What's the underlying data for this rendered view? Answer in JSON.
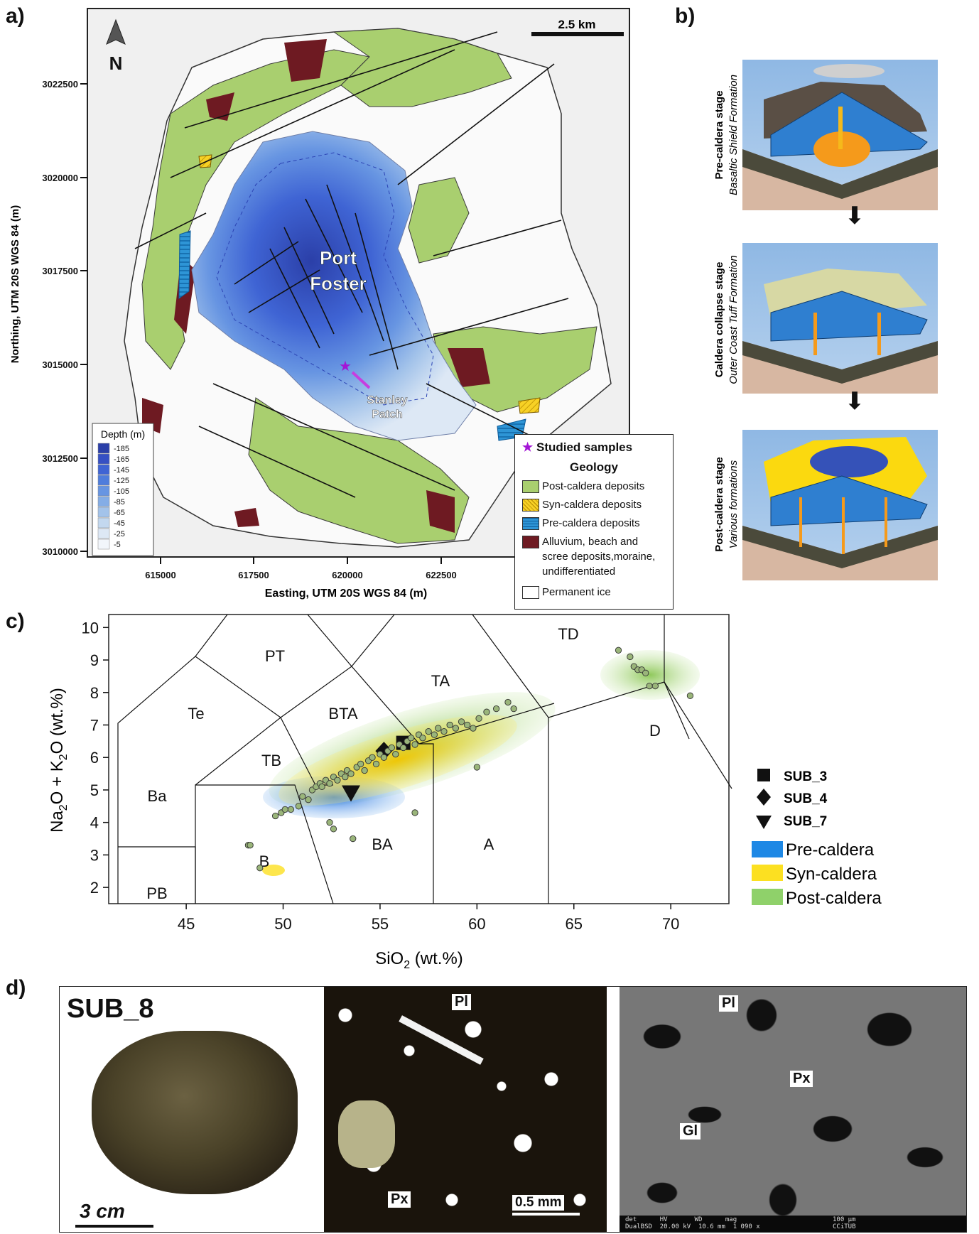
{
  "panel_a": {
    "letter": "a)",
    "north": "N",
    "scale": "2.5 km",
    "lake_title_1": "Port",
    "lake_title_2": "Foster",
    "site_1": "Stanley",
    "site_2": "Patch",
    "y_ticks": [
      "3022500",
      "3020000",
      "3017500",
      "3015000",
      "3012500",
      "3010000"
    ],
    "x_ticks": [
      "615000",
      "617500",
      "620000",
      "622500"
    ],
    "y_title": "Northing, UTM 20S WGS 84 (m)",
    "x_title": "Easting, UTM 20S WGS 84 (m)",
    "depth_legend": {
      "title": "Depth (m)",
      "levels": [
        "-185",
        "-165",
        "-145",
        "-125",
        "-105",
        "-85",
        "-65",
        "-45",
        "-25",
        "-5"
      ],
      "colors": [
        "#2b3fa8",
        "#3650c4",
        "#3f64d4",
        "#4f7ddc",
        "#6795e2",
        "#84ade6",
        "#a3c3ea",
        "#c3d8ef",
        "#dde8f5",
        "#f2f6fb"
      ]
    },
    "geology_legend": {
      "samples": "Studied samples",
      "title": "Geology",
      "items": [
        {
          "label": "Post-caldera deposits",
          "color": "#a9cf6f"
        },
        {
          "label": "Syn-caldera deposits",
          "color": "#f7d125"
        },
        {
          "label": "Pre-caldera deposits",
          "color": "#2e95d6"
        },
        {
          "label": "Alluvium, beach and",
          "color": "#6e1a22"
        },
        {
          "label": "Permanent ice",
          "color": "#ffffff"
        }
      ],
      "alluvium_extra_1": "scree deposits,moraine,",
      "alluvium_extra_2": "undifferentiated"
    }
  },
  "panel_b": {
    "letter": "b)",
    "stages": [
      {
        "stage": "Pre-caldera stage",
        "formation": "Basaltic Shield Formation"
      },
      {
        "stage": "Caldera collapse stage",
        "formation": "Outer Coast Tuff Formation"
      },
      {
        "stage": "Post-caldera stage",
        "formation": "Various formations"
      }
    ]
  },
  "panel_c": {
    "letter": "c)",
    "fields": [
      "TD",
      "PT",
      "TA",
      "Te",
      "BTA",
      "D",
      "TB",
      "Ba",
      "BA",
      "A",
      "B",
      "PB"
    ],
    "legend_samples": [
      "SUB_3",
      "SUB_4",
      "SUB_7"
    ],
    "legend_groups": [
      {
        "label": "Pre-caldera",
        "color": "#1e88e5"
      },
      {
        "label": "Syn-caldera",
        "color": "#fce021"
      },
      {
        "label": "Post-caldera",
        "color": "#8fd16a"
      }
    ]
  },
  "chart_data": {
    "type": "scatter",
    "title": "",
    "xlabel": "SiO2  (wt.%)",
    "ylabel": "Na2O + K2O  (wt.%)",
    "xlim": [
      41,
      73
    ],
    "ylim": [
      1.5,
      10.4
    ],
    "xticks": [
      45,
      50,
      55,
      60,
      65,
      70
    ],
    "yticks": [
      2,
      3,
      4,
      5,
      6,
      7,
      8,
      9,
      10
    ],
    "series": [
      {
        "name": "SUB_3",
        "marker": "square",
        "x": [
          56.2
        ],
        "y": [
          6.45
        ]
      },
      {
        "name": "SUB_4",
        "marker": "diamond",
        "x": [
          55.2
        ],
        "y": [
          6.2
        ]
      },
      {
        "name": "SUB_7",
        "marker": "triangle-down",
        "x": [
          53.5
        ],
        "y": [
          4.9
        ]
      },
      {
        "x": [
          48.2,
          48.8,
          49.6,
          49.9,
          50.1,
          50.4,
          50.8,
          51.0,
          51.3,
          51.5,
          51.7,
          51.9,
          52.0,
          52.2,
          52.4,
          52.6,
          52.8,
          53.0,
          53.2,
          53.3,
          53.5,
          53.8,
          54.0,
          54.2,
          54.4,
          54.6,
          54.8,
          55.0,
          55.2,
          55.4,
          55.6,
          55.8,
          56.0,
          56.2,
          56.4,
          56.6,
          56.8,
          57.0,
          57.2,
          57.5,
          57.8,
          58.0,
          58.3,
          58.6,
          58.9,
          59.2,
          59.5,
          59.8,
          60.1,
          60.5,
          61.0,
          61.6,
          61.9,
          52.4,
          52.6,
          53.6,
          56.8,
          48.3,
          67.3,
          67.9,
          68.1,
          68.3,
          68.5,
          68.7,
          68.9,
          69.2,
          71.0,
          60.0
        ],
        "y": [
          3.3,
          2.6,
          4.2,
          4.3,
          4.4,
          4.4,
          4.5,
          4.8,
          4.7,
          5.0,
          5.1,
          5.2,
          5.1,
          5.3,
          5.2,
          5.4,
          5.3,
          5.5,
          5.4,
          5.6,
          5.5,
          5.7,
          5.8,
          5.6,
          5.9,
          6.0,
          5.8,
          6.1,
          6.0,
          6.2,
          6.3,
          6.1,
          6.4,
          6.3,
          6.5,
          6.6,
          6.4,
          6.7,
          6.6,
          6.8,
          6.7,
          6.9,
          6.8,
          7.0,
          6.9,
          7.1,
          7.0,
          6.9,
          7.2,
          7.4,
          7.5,
          7.7,
          7.5,
          4.0,
          3.8,
          3.5,
          4.3,
          3.3,
          9.3,
          9.1,
          8.8,
          8.7,
          8.7,
          8.6,
          8.2,
          8.2,
          7.9,
          5.7
        ]
      }
    ]
  },
  "panel_d": {
    "letter": "d)",
    "sample": "SUB_8",
    "scale_rock": "3 cm",
    "scale_thin": "0.5 mm",
    "labels_thin": [
      "Pl",
      "Px"
    ],
    "labels_sem": [
      "Pl",
      "Px",
      "Gl"
    ],
    "sem_footer_1": "det      HV       WD      mag",
    "sem_footer_2": "DualBSD  20.00 kV  10.6 mm  1 090 x",
    "sem_footer_3": "100 μm",
    "sem_footer_4": "CCiTUB"
  }
}
